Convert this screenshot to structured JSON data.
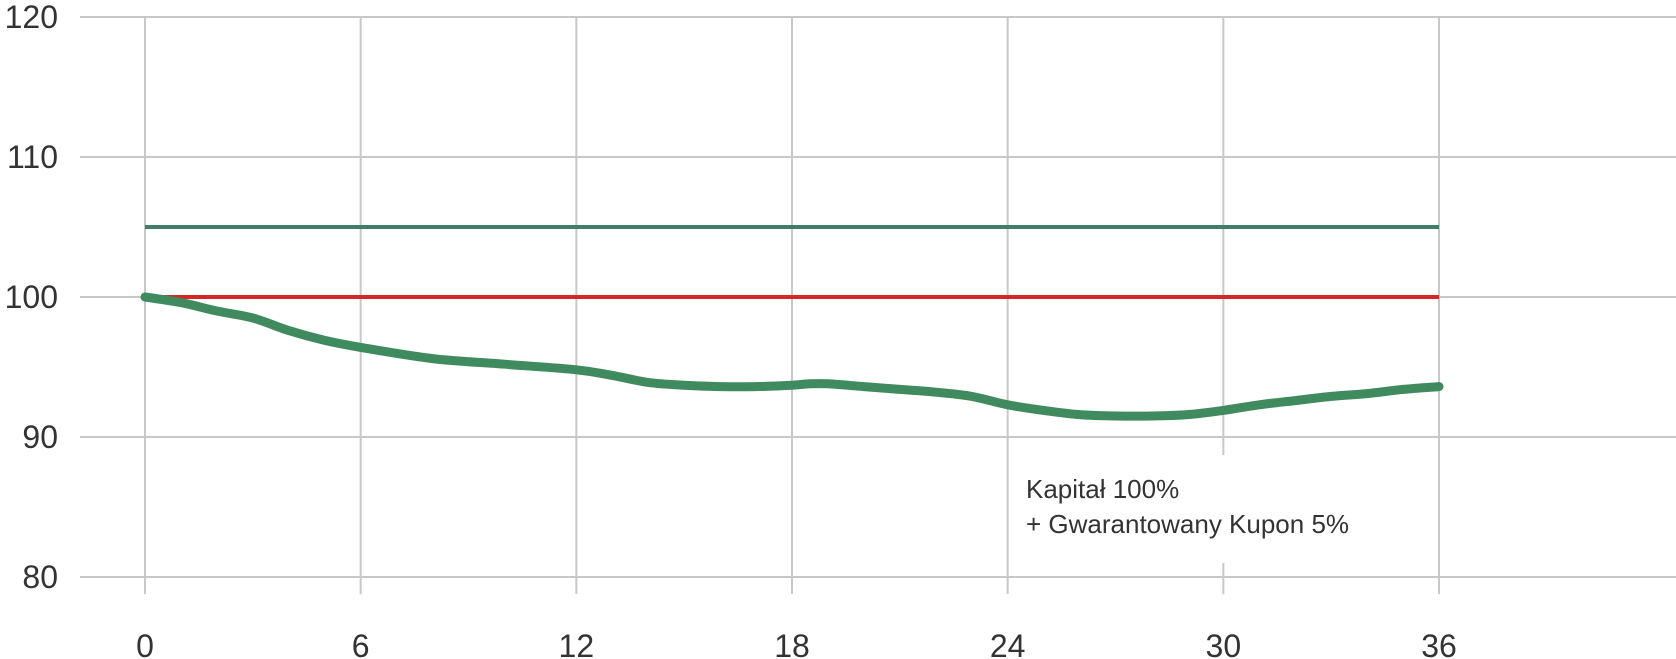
{
  "chart_data": {
    "type": "line",
    "title": "",
    "xlabel": "",
    "ylabel": "",
    "xlim": [
      0,
      36
    ],
    "ylim": [
      80,
      120
    ],
    "x_ticks": [
      0,
      6,
      12,
      18,
      24,
      30,
      36
    ],
    "y_ticks": [
      80,
      90,
      100,
      110,
      120
    ],
    "grid": true,
    "series": [
      {
        "color": "#3f8a5e",
        "x": [
          0,
          1,
          2,
          3,
          4,
          5,
          6,
          8,
          10,
          12,
          13,
          14,
          15,
          16,
          17,
          18,
          18.5,
          19,
          20,
          21,
          22,
          23,
          24,
          25,
          26,
          27,
          28,
          29,
          30,
          31,
          32,
          33,
          34,
          35,
          36
        ],
        "y": [
          100,
          99.6,
          99.0,
          98.5,
          97.6,
          96.9,
          96.4,
          95.6,
          95.2,
          94.8,
          94.4,
          93.9,
          93.7,
          93.6,
          93.6,
          93.7,
          93.8,
          93.8,
          93.6,
          93.4,
          93.2,
          92.9,
          92.3,
          91.9,
          91.6,
          91.5,
          91.5,
          91.6,
          91.9,
          92.3,
          92.6,
          92.9,
          93.1,
          93.4,
          93.6
        ]
      },
      {
        "color": "#d62728",
        "x": [
          0,
          36
        ],
        "y": [
          100,
          100
        ]
      },
      {
        "color": "#3f7f6a",
        "x": [
          0,
          36
        ],
        "y": [
          105,
          105
        ]
      }
    ],
    "annotations": [
      {
        "text": "Kapitał 100%"
      },
      {
        "text": "+ Gwarantowany Kupon 5%"
      }
    ]
  }
}
